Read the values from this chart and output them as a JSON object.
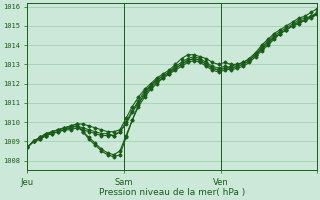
{
  "xlabel": "Pression niveau de la mer( hPa )",
  "bg_color": "#cce8d8",
  "grid_color": "#99ccaa",
  "line_color": "#1a5c1a",
  "ylim": [
    1007.5,
    1016.2
  ],
  "xlim": [
    0,
    48
  ],
  "yticks": [
    1008,
    1009,
    1010,
    1011,
    1012,
    1013,
    1014,
    1015,
    1016
  ],
  "xtick_positions": [
    0,
    16,
    32,
    48
  ],
  "xtick_labels": [
    "Jeu",
    "Sam",
    "Ven",
    ""
  ],
  "vline_positions": [
    16,
    32
  ],
  "series": [
    [
      1008.7,
      1009.0,
      1009.2,
      1009.4,
      1009.5,
      1009.6,
      1009.7,
      1009.8,
      1009.9,
      1009.9,
      1009.8,
      1009.7,
      1009.6,
      1009.5,
      1009.5,
      1009.6,
      1010.2,
      1010.8,
      1011.3,
      1011.7,
      1012.0,
      1012.3,
      1012.5,
      1012.7,
      1013.0,
      1013.3,
      1013.5,
      1013.5,
      1013.4,
      1013.3,
      1013.1,
      1013.0,
      1013.1,
      1013.0,
      1013.0,
      1013.1,
      1013.3,
      1013.6,
      1013.9,
      1014.2,
      1014.5,
      1014.7,
      1014.9,
      1015.1,
      1015.3,
      1015.4,
      1015.5,
      1015.7
    ],
    [
      1008.7,
      1009.0,
      1009.2,
      1009.4,
      1009.5,
      1009.6,
      1009.7,
      1009.8,
      1009.9,
      1009.5,
      1009.1,
      1008.8,
      1008.5,
      1008.3,
      1008.2,
      1008.3,
      1009.2,
      1010.1,
      1010.9,
      1011.5,
      1011.9,
      1012.2,
      1012.4,
      1012.6,
      1012.8,
      1013.0,
      1013.2,
      1013.3,
      1013.2,
      1013.0,
      1012.8,
      1012.7,
      1012.8,
      1012.9,
      1013.0,
      1013.1,
      1013.3,
      1013.6,
      1014.0,
      1014.3,
      1014.6,
      1014.8,
      1015.0,
      1015.2,
      1015.4,
      1015.5,
      1015.7,
      1015.9
    ],
    [
      1008.7,
      1009.0,
      1009.2,
      1009.3,
      1009.5,
      1009.6,
      1009.7,
      1009.7,
      1009.8,
      1009.7,
      1009.6,
      1009.5,
      1009.4,
      1009.4,
      1009.3,
      1009.5,
      1010.0,
      1010.6,
      1011.1,
      1011.6,
      1011.9,
      1012.2,
      1012.4,
      1012.6,
      1012.9,
      1013.1,
      1013.3,
      1013.4,
      1013.3,
      1013.1,
      1012.9,
      1012.8,
      1012.9,
      1012.8,
      1012.9,
      1013.0,
      1013.2,
      1013.5,
      1013.8,
      1014.1,
      1014.4,
      1014.6,
      1014.8,
      1015.0,
      1015.2,
      1015.3,
      1015.5,
      1015.6
    ],
    [
      1008.7,
      1009.0,
      1009.1,
      1009.3,
      1009.4,
      1009.5,
      1009.6,
      1009.7,
      1009.8,
      1009.5,
      1009.2,
      1008.9,
      1008.6,
      1008.4,
      1008.3,
      1008.5,
      1009.3,
      1010.1,
      1010.8,
      1011.3,
      1011.7,
      1012.0,
      1012.3,
      1012.5,
      1012.7,
      1012.9,
      1013.1,
      1013.2,
      1013.1,
      1012.9,
      1012.7,
      1012.6,
      1012.7,
      1012.8,
      1012.9,
      1013.0,
      1013.2,
      1013.5,
      1013.8,
      1014.1,
      1014.4,
      1014.6,
      1014.8,
      1015.0,
      1015.2,
      1015.3,
      1015.5,
      1015.6
    ],
    [
      1008.7,
      1009.0,
      1009.1,
      1009.3,
      1009.4,
      1009.5,
      1009.6,
      1009.6,
      1009.7,
      1009.6,
      1009.5,
      1009.4,
      1009.3,
      1009.3,
      1009.3,
      1009.5,
      1009.9,
      1010.5,
      1011.0,
      1011.4,
      1011.8,
      1012.1,
      1012.3,
      1012.5,
      1012.8,
      1013.0,
      1013.2,
      1013.3,
      1013.2,
      1013.0,
      1012.8,
      1012.7,
      1012.8,
      1012.7,
      1012.8,
      1012.9,
      1013.1,
      1013.4,
      1013.7,
      1014.0,
      1014.3,
      1014.6,
      1014.8,
      1015.0,
      1015.1,
      1015.3,
      1015.4,
      1015.6
    ]
  ]
}
